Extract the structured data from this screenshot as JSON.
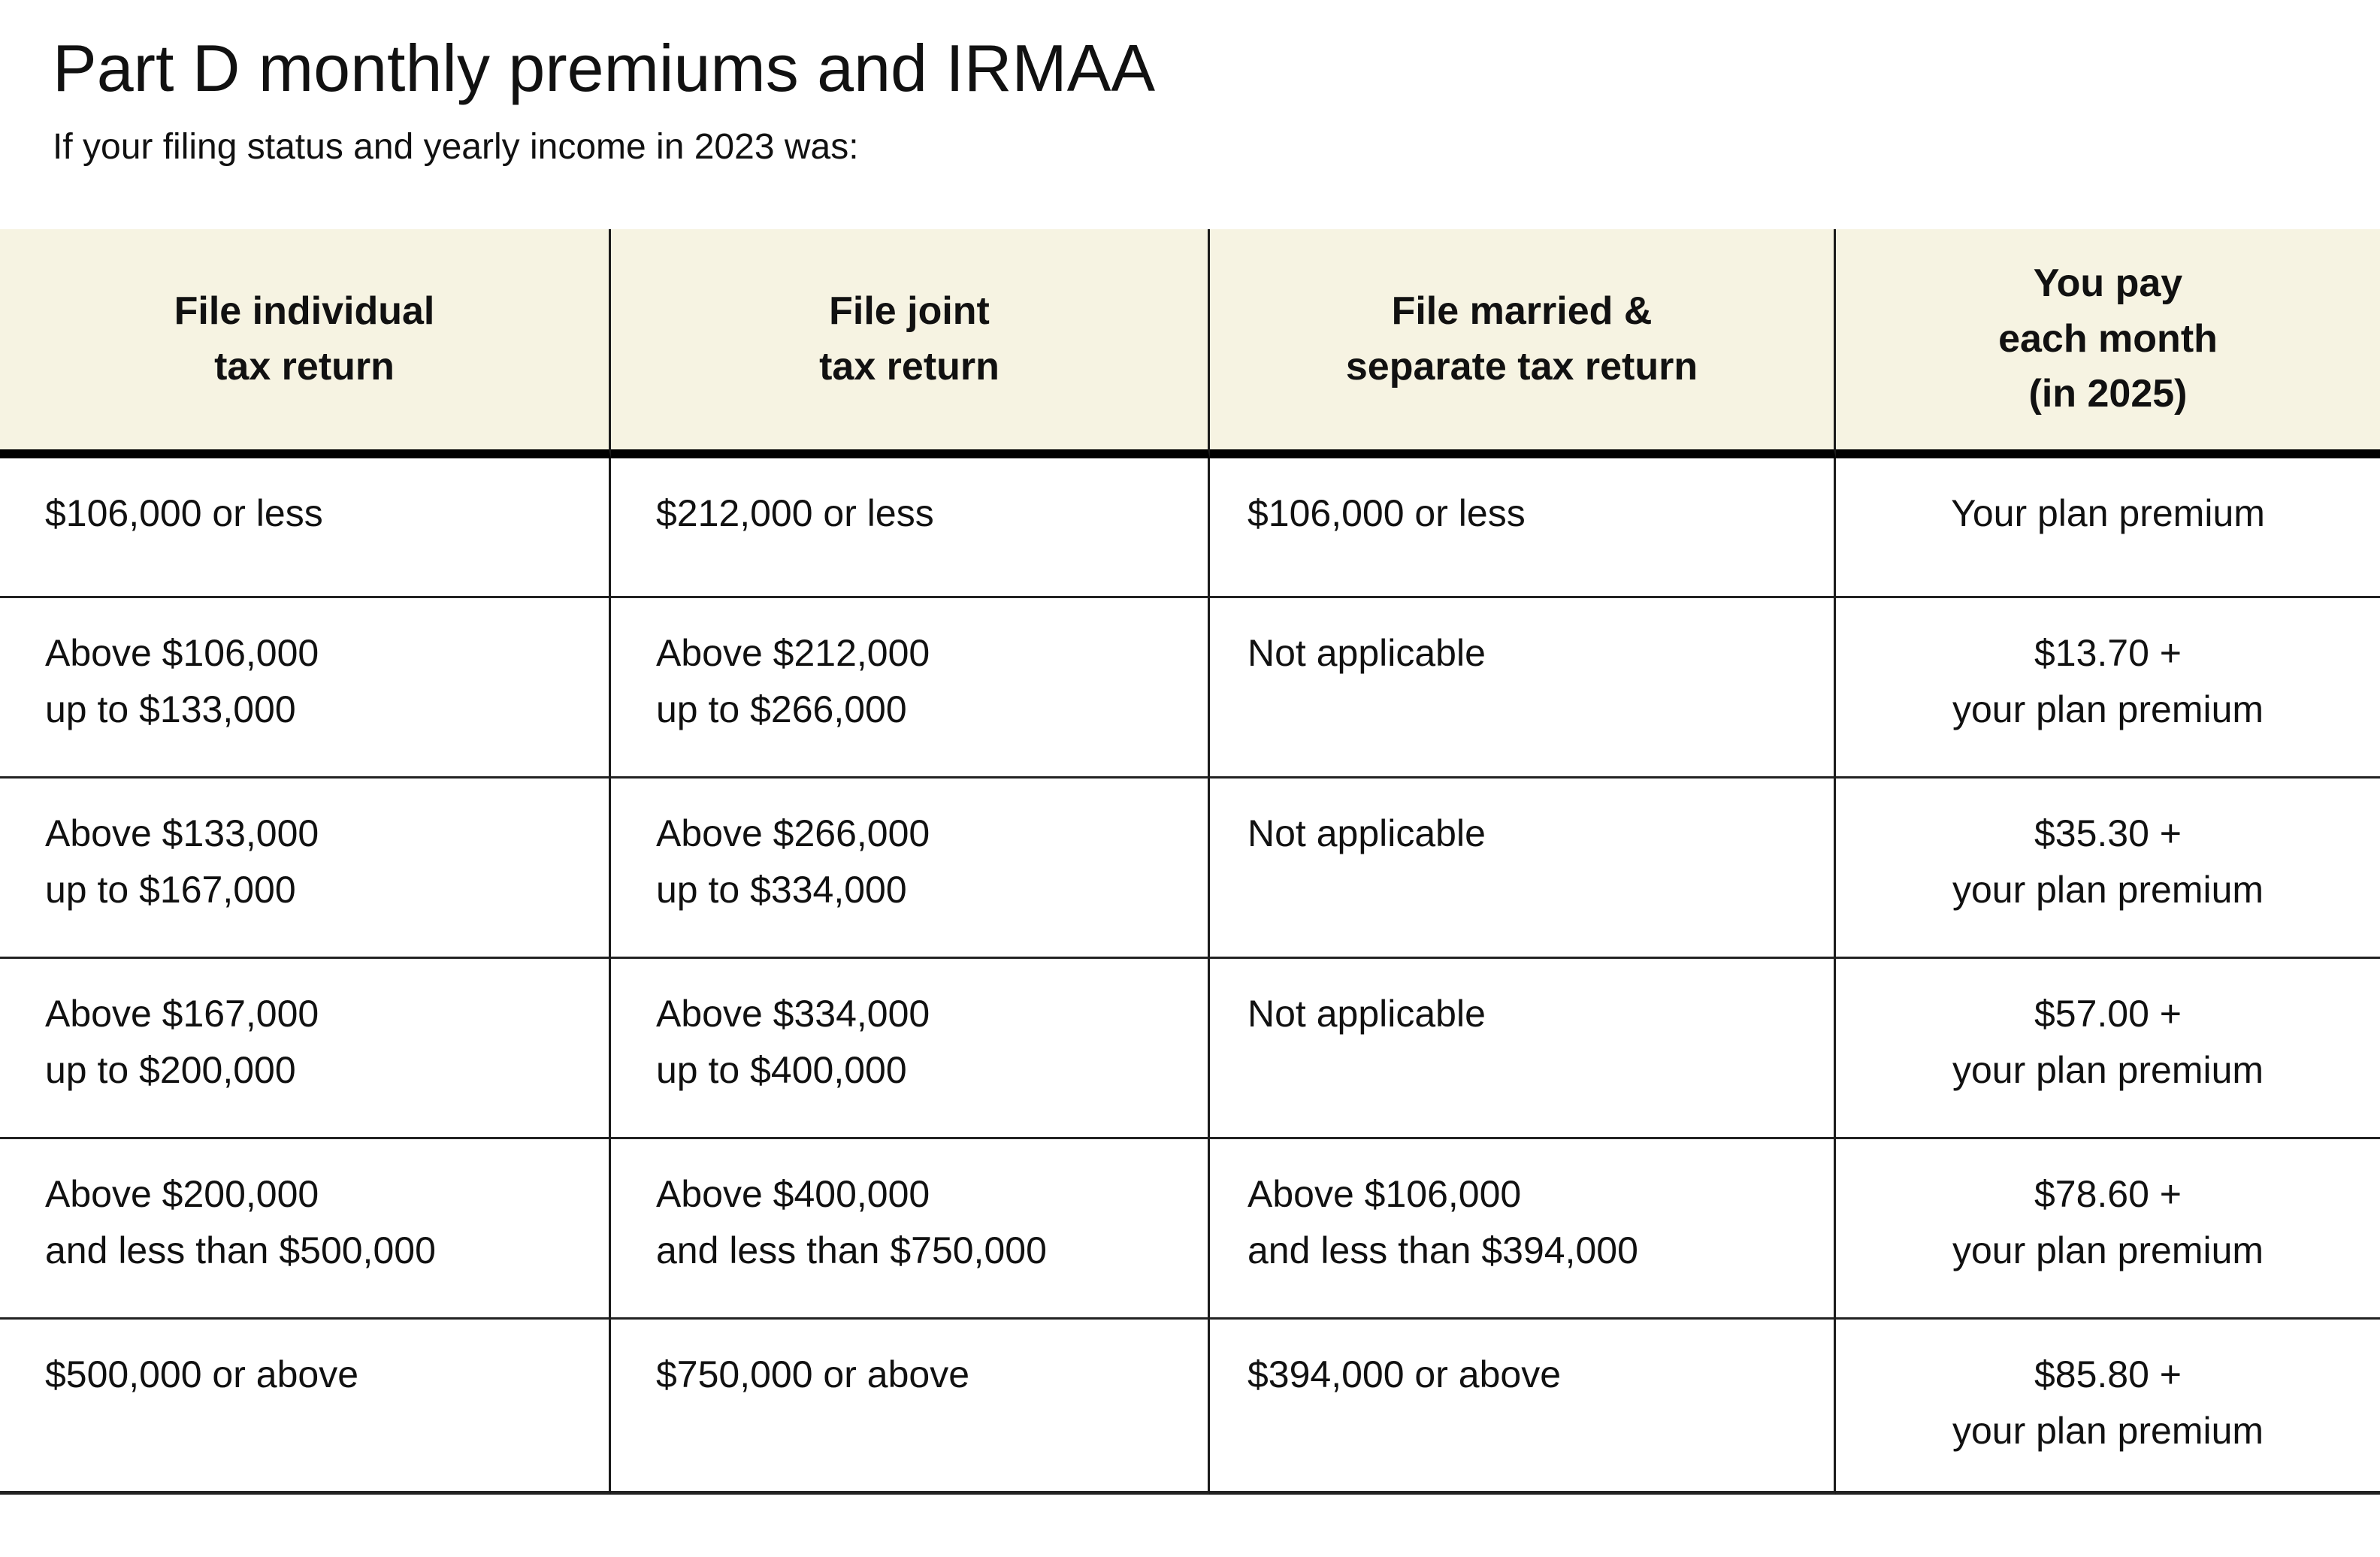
{
  "title": "Part D monthly premiums and IRMAA",
  "subtitle": "If your filing status and yearly income in 2023 was:",
  "colors": {
    "header_bg": "#f6f3e2",
    "text": "#111111"
  },
  "table": {
    "columns": [
      "File individual\ntax return",
      "File joint\ntax return",
      "File married &\nseparate tax return",
      "You pay\neach month\n(in 2025)"
    ],
    "rows": [
      [
        "$106,000 or less",
        "$212,000 or less",
        "$106,000 or less",
        "Your plan premium"
      ],
      [
        "Above $106,000\nup to $133,000",
        "Above $212,000\nup to $266,000",
        "Not applicable",
        "$13.70 +\nyour plan premium"
      ],
      [
        "Above $133,000\nup to $167,000",
        "Above $266,000\nup to $334,000",
        "Not applicable",
        "$35.30 +\nyour plan premium"
      ],
      [
        "Above $167,000\nup to $200,000",
        "Above $334,000\nup to $400,000",
        "Not applicable",
        "$57.00 +\nyour plan premium"
      ],
      [
        "Above $200,000\nand less than $500,000",
        "Above $400,000\nand less than $750,000",
        "Above $106,000\nand less than $394,000",
        "$78.60 +\nyour plan premium"
      ],
      [
        "$500,000 or above",
        "$750,000 or above",
        "$394,000 or above",
        "$85.80 +\nyour plan premium"
      ]
    ]
  }
}
